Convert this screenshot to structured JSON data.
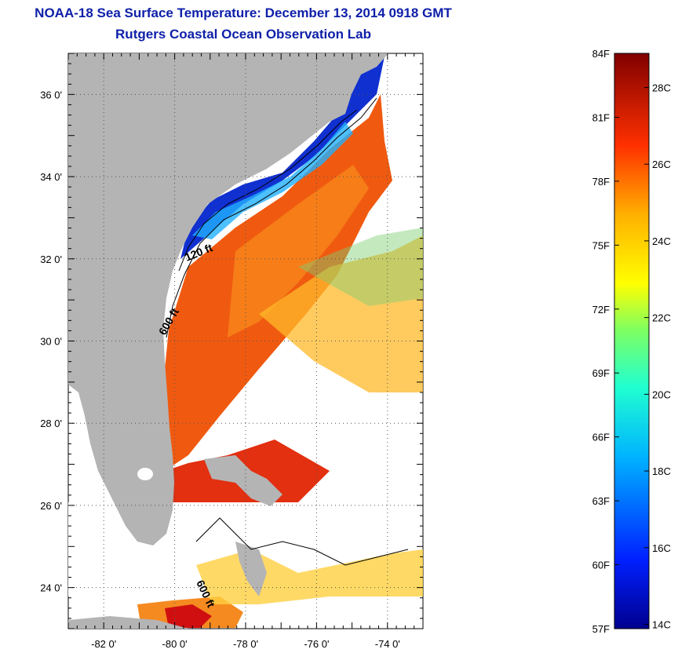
{
  "header": {
    "title": "NOAA-18 Sea Surface Temperature:  December 13, 2014 0918 GMT",
    "subtitle": "Rutgers Coastal Ocean Observation Lab"
  },
  "map": {
    "lon_ticks": [
      "-82 0'",
      "-80 0'",
      "-78 0'",
      "-76 0'",
      "-74 0'"
    ],
    "lat_ticks": [
      "36 0'",
      "34 0'",
      "32 0'",
      "30 0'",
      "28 0'",
      "26 0'",
      "24 0'"
    ],
    "lon_values": [
      -82,
      -80,
      -78,
      -76,
      -74
    ],
    "lat_values": [
      36,
      34,
      32,
      30,
      28,
      26,
      24
    ],
    "lon_range": [
      -83,
      -73
    ],
    "lat_range": [
      23,
      37
    ],
    "contour_labels": [
      "120 ft",
      "600 ft",
      "600 ft"
    ],
    "colors": {
      "land": "#b4b4b4",
      "no_data": "#ffffff"
    }
  },
  "colorbar": {
    "fahrenheit": [
      "84F",
      "81F",
      "78F",
      "75F",
      "72F",
      "69F",
      "66F",
      "63F",
      "60F",
      "57F"
    ],
    "celsius": [
      "28C",
      "26C",
      "24C",
      "22C",
      "20C",
      "18C",
      "16C",
      "14C"
    ],
    "range_f": [
      57,
      84
    ]
  }
}
